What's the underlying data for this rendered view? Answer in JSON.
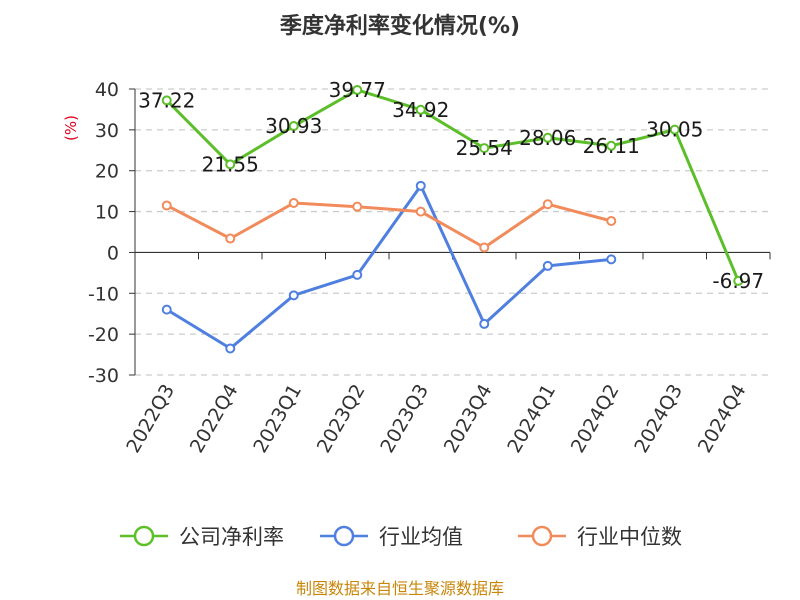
{
  "chart_data": {
    "type": "line",
    "title": "季度净利率变化情况(%)",
    "ylabel": "(%)",
    "ylim": [
      -30,
      40
    ],
    "yticks": [
      40,
      30,
      20,
      10,
      0,
      -10,
      -20,
      -30
    ],
    "grid": true,
    "legend_position": "bottom",
    "categories": [
      "2022Q3",
      "2022Q4",
      "2023Q1",
      "2023Q2",
      "2023Q3",
      "2023Q4",
      "2024Q1",
      "2024Q2",
      "2024Q3",
      "2024Q4"
    ],
    "series": [
      {
        "name": "公司净利率",
        "color": "#5cbf2a",
        "values": [
          37.22,
          21.55,
          30.93,
          39.77,
          34.92,
          25.54,
          28.06,
          26.11,
          30.05,
          -6.97
        ],
        "labels": [
          "37.22",
          "21.55",
          "30.93",
          "39.77",
          "34.92",
          "25.54",
          "28.06",
          "26.11",
          "30.05",
          "-6.97"
        ]
      },
      {
        "name": "行业均值",
        "color": "#4f7fdf",
        "values": [
          -14,
          -23.5,
          -10.5,
          -5.5,
          16.3,
          -17.5,
          -3.3,
          -1.7,
          null,
          null
        ]
      },
      {
        "name": "行业中位数",
        "color": "#f28b5b",
        "values": [
          11.5,
          3.4,
          12.1,
          11.2,
          10,
          1.2,
          11.8,
          7.7,
          null,
          null
        ]
      }
    ]
  },
  "source": "制图数据来自恒生聚源数据库"
}
